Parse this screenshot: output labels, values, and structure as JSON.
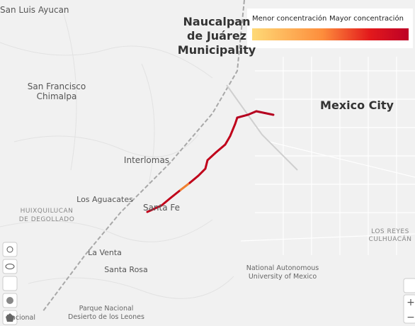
{
  "legend": {
    "low_label": "Menor concentración",
    "high_label": "Mayor concentración"
  },
  "places": [
    {
      "lines": [
        "San Luis Ayucan"
      ],
      "kind": "town"
    },
    {
      "lines": [
        "Naucalpan",
        "de Juárez",
        "Municipality"
      ],
      "kind": "major"
    },
    {
      "lines": [
        "San Francisco",
        "Chimalpa"
      ],
      "kind": "town"
    },
    {
      "lines": [
        "Mexico City"
      ],
      "kind": "major"
    },
    {
      "lines": [
        "Interlomas"
      ],
      "kind": "town"
    },
    {
      "lines": [
        "Los Aguacates"
      ],
      "kind": "small"
    },
    {
      "lines": [
        "HUIXQUILUCAN",
        "DE DEGOLLADO"
      ],
      "kind": "district"
    },
    {
      "lines": [
        "Santa Fe"
      ],
      "kind": "town"
    },
    {
      "lines": [
        "La Venta"
      ],
      "kind": "small"
    },
    {
      "lines": [
        "Santa Rosa"
      ],
      "kind": "small"
    },
    {
      "lines": [
        "National Autonomous",
        "University of Mexico"
      ],
      "kind": "poi"
    },
    {
      "lines": [
        "Parque Nacional",
        "Desierto de los Leones"
      ],
      "kind": "poi"
    },
    {
      "lines": [
        "LOS REYES",
        "CULHUACÁN"
      ],
      "kind": "district"
    },
    {
      "lines": [
        "Nacional"
      ],
      "kind": "poi"
    }
  ],
  "controls": {
    "zoom_in": "+",
    "zoom_out": "−"
  }
}
